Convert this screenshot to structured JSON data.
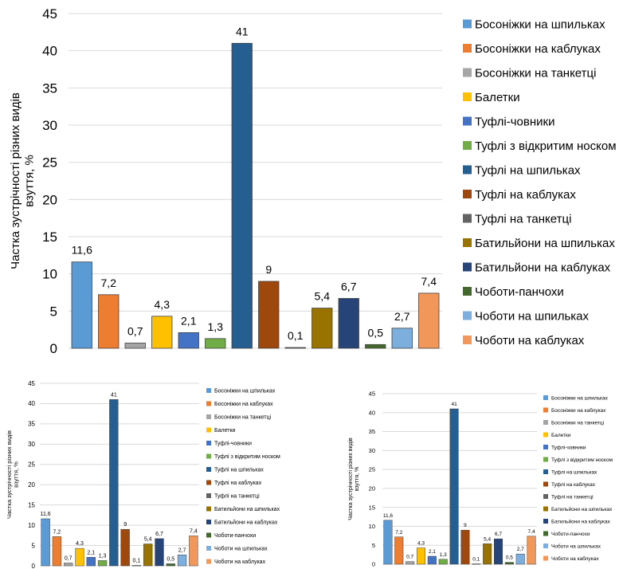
{
  "chart_data": [
    {
      "type": "bar",
      "ylabel": "Частка зустрічності різних видів взуття, %",
      "ylim": [
        0,
        45
      ],
      "yticks": [
        0,
        5,
        10,
        15,
        20,
        25,
        30,
        35,
        40,
        45
      ],
      "grid": true,
      "legend_position": "right",
      "series": [
        {
          "name": "Босоніжки на шпильках",
          "value": 11.6,
          "label": "11,6",
          "color": "#5b9bd5"
        },
        {
          "name": "Босоніжки на каблуках",
          "value": 7.2,
          "label": "7,2",
          "color": "#ed7d31"
        },
        {
          "name": "Босоніжки на танкетці",
          "value": 0.7,
          "label": "0,7",
          "color": "#a5a5a5"
        },
        {
          "name": "Балетки",
          "value": 4.3,
          "label": "4,3",
          "color": "#ffc000"
        },
        {
          "name": "Туфлі-човники",
          "value": 2.1,
          "label": "2,1",
          "color": "#4472c4"
        },
        {
          "name": "Туфлі з відкритим носком",
          "value": 1.3,
          "label": "1,3",
          "color": "#70ad47"
        },
        {
          "name": "Туфлі на шпильках",
          "value": 41,
          "label": "41",
          "color": "#255e91"
        },
        {
          "name": "Туфлі на каблуках",
          "value": 9,
          "label": "9",
          "color": "#9e480e"
        },
        {
          "name": "Туфлі на танкетці",
          "value": 0.1,
          "label": "0,1",
          "color": "#636363"
        },
        {
          "name": "Батильйони на шпильках",
          "value": 5.4,
          "label": "5,4",
          "color": "#997300"
        },
        {
          "name": "Батильйони на каблуках",
          "value": 6.7,
          "label": "6,7",
          "color": "#264478"
        },
        {
          "name": "Чоботи-панчохи",
          "value": 0.5,
          "label": "0,5",
          "color": "#43682b"
        },
        {
          "name": "Чоботи на шпильках",
          "value": 2.7,
          "label": "2,7",
          "color": "#7cafdd"
        },
        {
          "name": "Чоботи на каблуках",
          "value": 7.4,
          "label": "7,4",
          "color": "#f1975a"
        }
      ]
    },
    {
      "type": "bar",
      "ylabel": "Частка зустрічності різних видів взуття, %",
      "ylim": [
        0,
        45
      ],
      "yticks": [
        0,
        5,
        10,
        15,
        20,
        25,
        30,
        35,
        40,
        45
      ],
      "grid": true,
      "legend_position": "right",
      "series": [
        {
          "name": "Босоніжки на шпильках",
          "value": 11.6,
          "label": "11,6",
          "color": "#5b9bd5"
        },
        {
          "name": "Босоніжки на каблуках",
          "value": 7.2,
          "label": "7,2",
          "color": "#ed7d31"
        },
        {
          "name": "Босоніжки на танкетці",
          "value": 0.7,
          "label": "0,7",
          "color": "#a5a5a5"
        },
        {
          "name": "Балетки",
          "value": 4.3,
          "label": "4,3",
          "color": "#ffc000"
        },
        {
          "name": "Туфлі-човники",
          "value": 2.1,
          "label": "2,1",
          "color": "#4472c4"
        },
        {
          "name": "Туфлі з відкритим носком",
          "value": 1.3,
          "label": "1,3",
          "color": "#70ad47"
        },
        {
          "name": "Туфлі на шпильках",
          "value": 41,
          "label": "41",
          "color": "#255e91"
        },
        {
          "name": "Туфлі на каблуках",
          "value": 9,
          "label": "9",
          "color": "#9e480e"
        },
        {
          "name": "Туфлі на танкетці",
          "value": 0.1,
          "label": "0,1",
          "color": "#636363"
        },
        {
          "name": "Батильйони на шпильках",
          "value": 5.4,
          "label": "5,4",
          "color": "#997300"
        },
        {
          "name": "Батильйони на каблуках",
          "value": 6.7,
          "label": "6,7",
          "color": "#264478"
        },
        {
          "name": "Чоботи-панчохи",
          "value": 0.5,
          "label": "0,5",
          "color": "#43682b"
        },
        {
          "name": "Чоботи на шпильках",
          "value": 2.7,
          "label": "2,7",
          "color": "#7cafdd"
        },
        {
          "name": "Чоботи на каблуках",
          "value": 7.4,
          "label": "7,4",
          "color": "#f1975a"
        }
      ]
    },
    {
      "type": "bar",
      "ylabel": "Частка зустрічності різних видів взуття, %",
      "ylim": [
        0,
        45
      ],
      "yticks": [
        0,
        5,
        10,
        15,
        20,
        25,
        30,
        35,
        40,
        45
      ],
      "grid": true,
      "legend_position": "right",
      "series": [
        {
          "name": "Босоніжки на шпильках",
          "value": 11.6,
          "label": "11,6",
          "color": "#5b9bd5"
        },
        {
          "name": "Босоніжки на каблуках",
          "value": 7.2,
          "label": "7,2",
          "color": "#ed7d31"
        },
        {
          "name": "Босоніжки на танкетці",
          "value": 0.7,
          "label": "0,7",
          "color": "#a5a5a5"
        },
        {
          "name": "Балетки",
          "value": 4.3,
          "label": "4,3",
          "color": "#ffc000"
        },
        {
          "name": "Туфлі-човники",
          "value": 2.1,
          "label": "2,1",
          "color": "#4472c4"
        },
        {
          "name": "Туфлі з відкритим носком",
          "value": 1.3,
          "label": "1,3",
          "color": "#70ad47"
        },
        {
          "name": "Туфлі на шпильках",
          "value": 41,
          "label": "41",
          "color": "#255e91"
        },
        {
          "name": "Туфлі на каблуках",
          "value": 9,
          "label": "9",
          "color": "#9e480e"
        },
        {
          "name": "Туфлі на танкетці",
          "value": 0.1,
          "label": "0,1",
          "color": "#636363"
        },
        {
          "name": "Батильйони на шпильках",
          "value": 5.4,
          "label": "5,4",
          "color": "#997300"
        },
        {
          "name": "Батильйони на каблуках",
          "value": 6.7,
          "label": "6,7",
          "color": "#264478"
        },
        {
          "name": "Чоботи-панчохи",
          "value": 0.5,
          "label": "0,5",
          "color": "#43682b"
        },
        {
          "name": "Чоботи на шпильках",
          "value": 2.7,
          "label": "2,7",
          "color": "#7cafdd"
        },
        {
          "name": "Чоботи на каблуках",
          "value": 7.4,
          "label": "7,4",
          "color": "#f1975a"
        }
      ]
    }
  ]
}
